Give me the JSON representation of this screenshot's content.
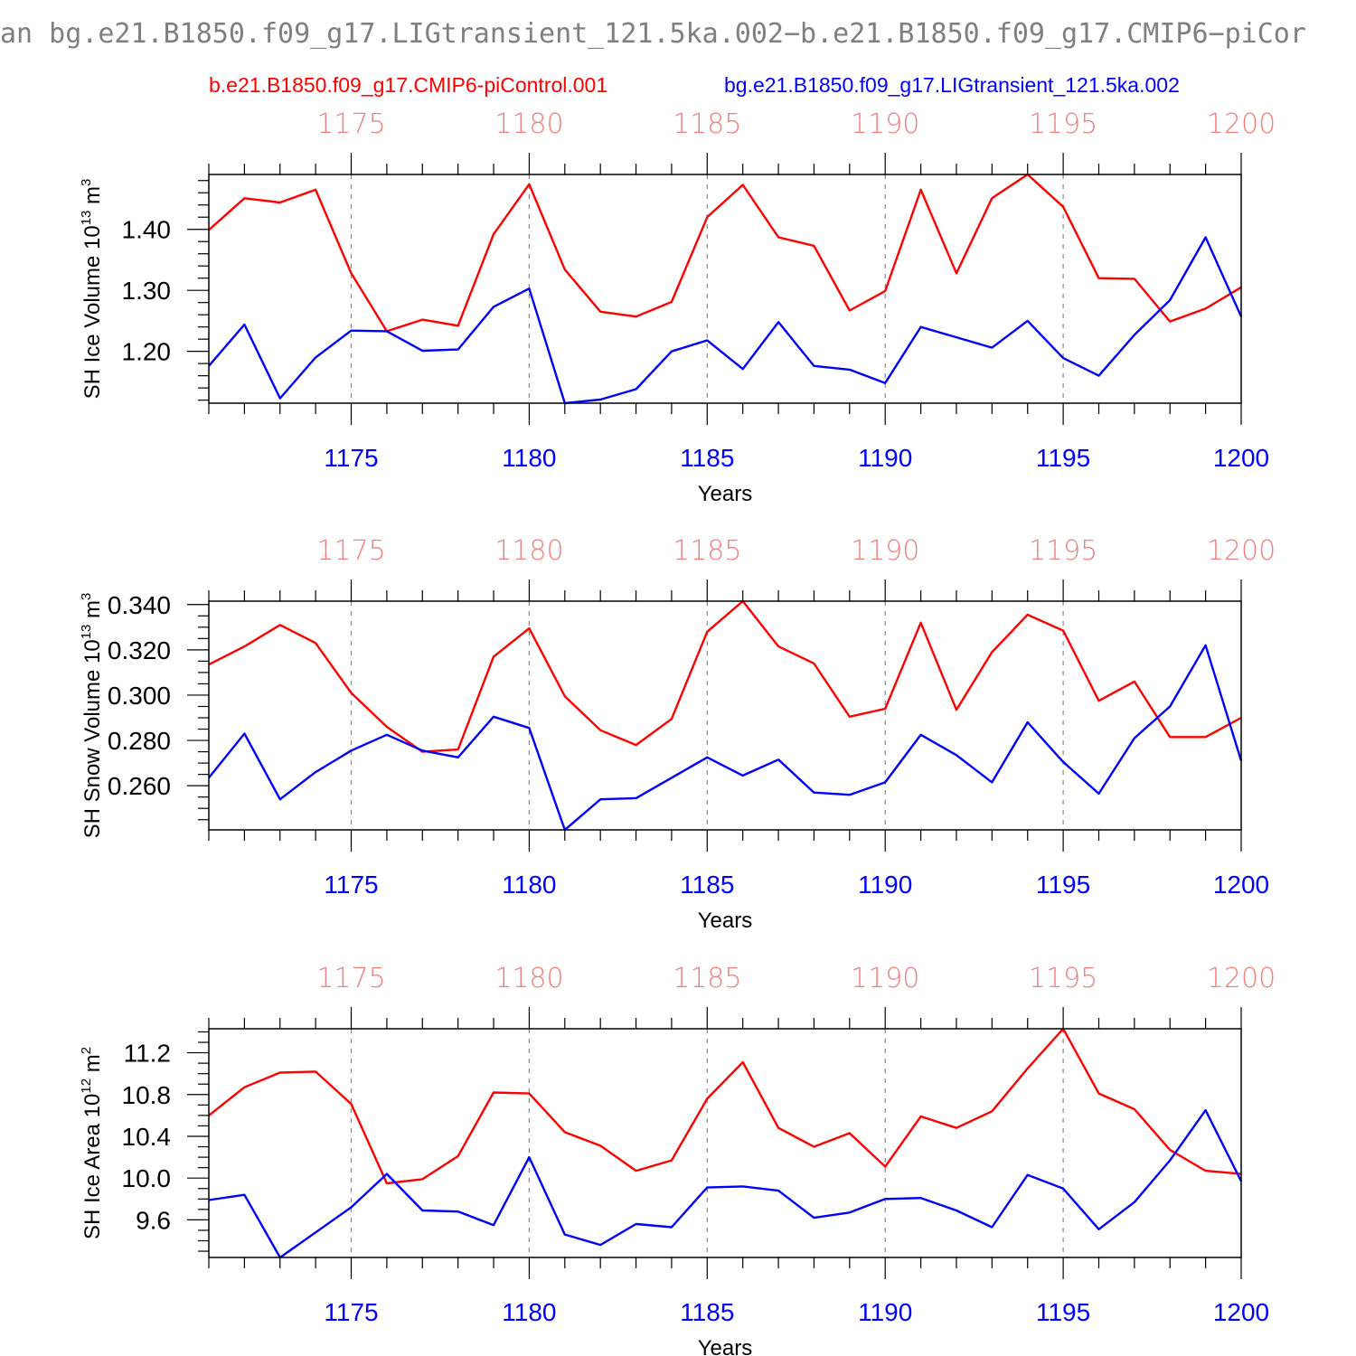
{
  "title": "an bg.e21.B1850.f09_g17.LIGtransient_121.5ka.002−b.e21.B1850.f09_g17.CMIP6−piCor",
  "colors": {
    "series1": "#ff0000",
    "series2": "#0000ff",
    "top_ticks": "#f08080",
    "bottom_ticks": "#0000ff"
  },
  "legend": {
    "series1": "b.e21.B1850.f09_g17.CMIP6-piControl.001",
    "series2": "bg.e21.B1850.f09_g17.LIGtransient_121.5ka.002"
  },
  "chart_data": [
    {
      "type": "line",
      "ylabel": "SH Ice Volume 10",
      "ylabel_sup": "13",
      "ylabel_unit": "m",
      "ylabel_unit_sup": "3",
      "xlabel": "Years",
      "xlim": [
        1171,
        1200
      ],
      "ylim": [
        1.115,
        1.49
      ],
      "yticks": [
        1.2,
        1.3,
        1.4
      ],
      "yticklabels": [
        "1.20",
        "1.30",
        "1.40"
      ],
      "ytick_minor_step": 0.02,
      "xticks": [
        1175,
        1180,
        1185,
        1190,
        1195,
        1200
      ],
      "xticklabels": [
        "1175",
        "1180",
        "1185",
        "1190",
        "1195",
        "1200"
      ],
      "x": [
        1171,
        1172,
        1173,
        1174,
        1175,
        1176,
        1177,
        1178,
        1179,
        1180,
        1181,
        1182,
        1183,
        1184,
        1185,
        1186,
        1187,
        1188,
        1189,
        1190,
        1191,
        1192,
        1193,
        1194,
        1195,
        1196,
        1197,
        1198,
        1199,
        1200
      ],
      "series": [
        {
          "name": "b.e21.B1850.f09_g17.CMIP6-piControl.001",
          "values": [
            1.399,
            1.451,
            1.444,
            1.465,
            1.328,
            1.233,
            1.252,
            1.242,
            1.392,
            1.474,
            1.334,
            1.265,
            1.257,
            1.281,
            1.42,
            1.473,
            1.387,
            1.373,
            1.267,
            1.299,
            1.465,
            1.328,
            1.451,
            1.49,
            1.437,
            1.32,
            1.319,
            1.249,
            1.27,
            1.305
          ]
        },
        {
          "name": "bg.e21.B1850.f09_g17.LIGtransient_121.5ka.002",
          "values": [
            1.176,
            1.244,
            1.123,
            1.19,
            1.234,
            1.233,
            1.201,
            1.203,
            1.273,
            1.303,
            1.115,
            1.121,
            1.138,
            1.2,
            1.218,
            1.171,
            1.248,
            1.176,
            1.17,
            1.148,
            1.24,
            1.223,
            1.206,
            1.25,
            1.189,
            1.16,
            1.227,
            1.284,
            1.387,
            1.257
          ]
        }
      ]
    },
    {
      "type": "line",
      "ylabel": "SH Snow Volume 10",
      "ylabel_sup": "13",
      "ylabel_unit": "m",
      "ylabel_unit_sup": "3",
      "xlabel": "Years",
      "xlim": [
        1171,
        1200
      ],
      "ylim": [
        0.2405,
        0.3415
      ],
      "yticks": [
        0.26,
        0.28,
        0.3,
        0.32,
        0.34
      ],
      "yticklabels": [
        "0.260",
        "0.280",
        "0.300",
        "0.320",
        "0.340"
      ],
      "ytick_minor_step": 0.005,
      "xticks": [
        1175,
        1180,
        1185,
        1190,
        1195,
        1200
      ],
      "xticklabels": [
        "1175",
        "1180",
        "1185",
        "1190",
        "1195",
        "1200"
      ],
      "x": [
        1171,
        1172,
        1173,
        1174,
        1175,
        1176,
        1177,
        1178,
        1179,
        1180,
        1181,
        1182,
        1183,
        1184,
        1185,
        1186,
        1187,
        1188,
        1189,
        1190,
        1191,
        1192,
        1193,
        1194,
        1195,
        1196,
        1197,
        1198,
        1199,
        1200
      ],
      "series": [
        {
          "name": "b.e21.B1850.f09_g17.CMIP6-piControl.001",
          "values": [
            0.3135,
            0.3215,
            0.331,
            0.323,
            0.301,
            0.286,
            0.275,
            0.276,
            0.317,
            0.3295,
            0.2995,
            0.2845,
            0.278,
            0.2895,
            0.328,
            0.3415,
            0.3215,
            0.314,
            0.2905,
            0.294,
            0.332,
            0.2935,
            0.319,
            0.3355,
            0.3285,
            0.2975,
            0.306,
            0.2815,
            0.2815,
            0.29
          ]
        },
        {
          "name": "bg.e21.B1850.f09_g17.LIGtransient_121.5ka.002",
          "values": [
            0.2635,
            0.283,
            0.254,
            0.266,
            0.2755,
            0.2825,
            0.2755,
            0.2725,
            0.2905,
            0.2855,
            0.2405,
            0.254,
            0.2545,
            0.2635,
            0.2725,
            0.2645,
            0.2715,
            0.257,
            0.256,
            0.2615,
            0.2825,
            0.2735,
            0.2615,
            0.288,
            0.2705,
            0.2565,
            0.281,
            0.295,
            0.322,
            0.271
          ]
        }
      ]
    },
    {
      "type": "line",
      "ylabel": "SH Ice Area 10",
      "ylabel_sup": "12",
      "ylabel_unit": "m",
      "ylabel_unit_sup": "2",
      "xlabel": "Years",
      "xlim": [
        1171,
        1200
      ],
      "ylim": [
        9.24,
        11.43
      ],
      "yticks": [
        9.6,
        10.0,
        10.4,
        10.8,
        11.2
      ],
      "yticklabels": [
        "9.6",
        "10.0",
        "10.4",
        "10.8",
        "11.2"
      ],
      "ytick_minor_step": 0.1,
      "xticks": [
        1175,
        1180,
        1185,
        1190,
        1195,
        1200
      ],
      "xticklabels": [
        "1175",
        "1180",
        "1185",
        "1190",
        "1195",
        "1200"
      ],
      "x": [
        1171,
        1172,
        1173,
        1174,
        1175,
        1176,
        1177,
        1178,
        1179,
        1180,
        1181,
        1182,
        1183,
        1184,
        1185,
        1186,
        1187,
        1188,
        1189,
        1190,
        1191,
        1192,
        1193,
        1194,
        1195,
        1196,
        1197,
        1198,
        1199,
        1200
      ],
      "series": [
        {
          "name": "b.e21.B1850.f09_g17.CMIP6-piControl.001",
          "values": [
            10.6,
            10.87,
            11.01,
            11.02,
            10.71,
            9.95,
            9.99,
            10.21,
            10.82,
            10.81,
            10.44,
            10.31,
            10.07,
            10.17,
            10.76,
            11.11,
            10.48,
            10.3,
            10.43,
            10.11,
            10.59,
            10.48,
            10.64,
            11.05,
            11.43,
            10.81,
            10.66,
            10.27,
            10.07,
            10.04
          ]
        },
        {
          "name": "bg.e21.B1850.f09_g17.LIGtransient_121.5ka.002",
          "values": [
            9.79,
            9.84,
            9.24,
            9.48,
            9.72,
            10.04,
            9.69,
            9.68,
            9.55,
            10.2,
            9.46,
            9.36,
            9.56,
            9.53,
            9.91,
            9.92,
            9.88,
            9.62,
            9.67,
            9.8,
            9.81,
            9.69,
            9.53,
            10.03,
            9.9,
            9.51,
            9.77,
            10.17,
            10.65,
            9.97
          ]
        }
      ]
    }
  ]
}
